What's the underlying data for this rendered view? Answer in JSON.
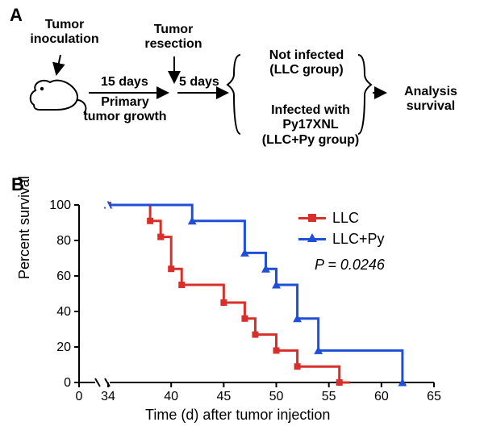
{
  "panelA": {
    "label": "A",
    "tumor_inoculation": "Tumor\ninoculation",
    "tumor_resection": "Tumor\nresection",
    "days_15": "15 days",
    "primary_growth": "Primary\ntumor growth",
    "days_5": "5 days",
    "not_infected": "Not infected\n(LLC group)",
    "infected": "Infected with ",
    "infected_strain": "Py17XNL",
    "infected_group": "(LLC+Py group)",
    "analysis": "Analysis survival"
  },
  "panelB": {
    "label": "B",
    "ylabel": "Percent survival",
    "xlabel": "Time (d) after tumor injection",
    "legend_llc": "LLC",
    "legend_llcpy": "LLC+Py",
    "pval": "P = 0.0246",
    "chart": {
      "type": "kaplan-meier",
      "xlim": [
        0,
        65
      ],
      "ylim": [
        0,
        100
      ],
      "xticks": [
        0,
        34,
        40,
        45,
        50,
        55,
        60,
        65
      ],
      "yticks": [
        0,
        20,
        40,
        60,
        80,
        100
      ],
      "label_fontsize": 16,
      "axis_fontsize": 18,
      "axis_break_between": [
        0,
        34
      ],
      "background_color": "#ffffff",
      "series": [
        {
          "name": "LLC",
          "color": "#d72f2a",
          "marker": "square",
          "marker_size": 8,
          "line_width": 3,
          "points": [
            [
              34,
              100
            ],
            [
              38,
              100
            ],
            [
              38,
              91
            ],
            [
              39,
              91
            ],
            [
              39,
              82
            ],
            [
              40,
              82
            ],
            [
              40,
              64
            ],
            [
              41,
              64
            ],
            [
              41,
              55
            ],
            [
              45,
              55
            ],
            [
              45,
              45
            ],
            [
              47,
              45
            ],
            [
              47,
              36
            ],
            [
              48,
              36
            ],
            [
              48,
              27
            ],
            [
              50,
              27
            ],
            [
              50,
              18
            ],
            [
              52,
              18
            ],
            [
              52,
              9
            ],
            [
              56,
              9
            ],
            [
              56,
              0
            ],
            [
              57,
              0
            ]
          ],
          "markers_at": [
            [
              34,
              100
            ],
            [
              38,
              91
            ],
            [
              39,
              82
            ],
            [
              40,
              64
            ],
            [
              41,
              55
            ],
            [
              45,
              45
            ],
            [
              47,
              36
            ],
            [
              48,
              27
            ],
            [
              50,
              18
            ],
            [
              52,
              9
            ],
            [
              56,
              0
            ]
          ]
        },
        {
          "name": "LLC+Py",
          "color": "#1f4fd6",
          "marker": "triangle",
          "marker_size": 9,
          "line_width": 3,
          "points": [
            [
              34,
              100
            ],
            [
              42,
              100
            ],
            [
              42,
              91
            ],
            [
              47,
              91
            ],
            [
              47,
              73
            ],
            [
              49,
              73
            ],
            [
              49,
              64
            ],
            [
              50,
              64
            ],
            [
              50,
              55
            ],
            [
              52,
              55
            ],
            [
              52,
              36
            ],
            [
              54,
              36
            ],
            [
              54,
              18
            ],
            [
              62,
              18
            ],
            [
              62,
              0
            ]
          ],
          "markers_at": [
            [
              34,
              100
            ],
            [
              42,
              91
            ],
            [
              47,
              73
            ],
            [
              49,
              64
            ],
            [
              50,
              55
            ],
            [
              52,
              36
            ],
            [
              54,
              18
            ],
            [
              62,
              0
            ]
          ]
        }
      ]
    }
  }
}
